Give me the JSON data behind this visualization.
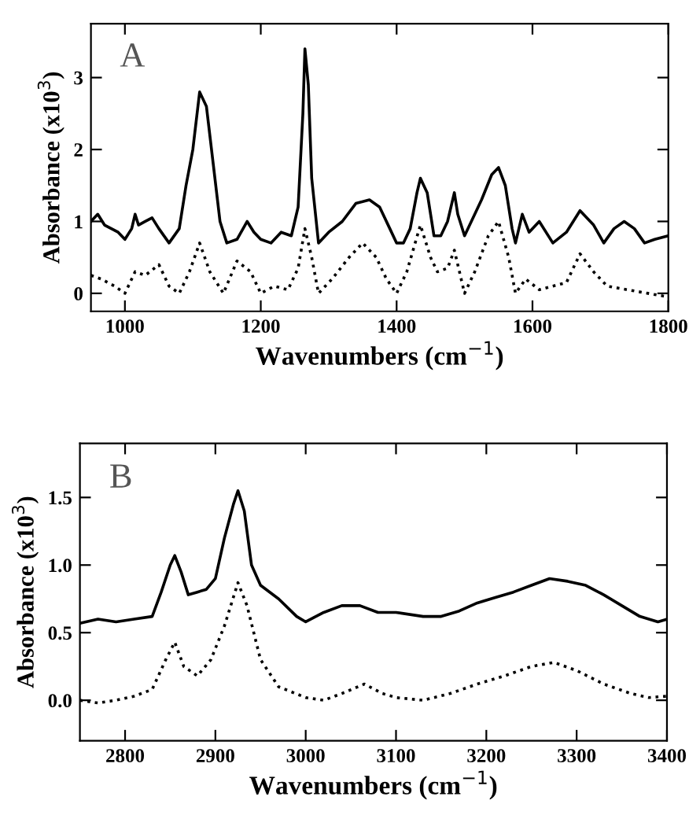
{
  "chart_data": [
    {
      "type": "line",
      "xlabel": "Wavenumbers (cm$^{−1}$)",
      "ylabel": "Absorbance (x10$^{3}$)",
      "annotations": [
        "A"
      ],
      "xlim": [
        950,
        1800
      ],
      "xticks": [
        1000,
        1200,
        1400,
        1600,
        1800
      ],
      "ylim": [
        -0.25,
        3.75
      ],
      "yticks": [
        0,
        1,
        2,
        3
      ],
      "grid": false,
      "legend": false,
      "series": [
        {
          "color": "#000000",
          "line_style": "solid",
          "x": [
            950,
            960,
            970,
            990,
            1000,
            1010,
            1015,
            1020,
            1030,
            1040,
            1050,
            1065,
            1080,
            1090,
            1100,
            1110,
            1120,
            1130,
            1140,
            1150,
            1165,
            1180,
            1190,
            1200,
            1215,
            1230,
            1245,
            1255,
            1262,
            1265,
            1270,
            1275,
            1285,
            1300,
            1320,
            1340,
            1360,
            1375,
            1390,
            1400,
            1410,
            1420,
            1430,
            1435,
            1445,
            1455,
            1465,
            1475,
            1485,
            1490,
            1500,
            1510,
            1525,
            1540,
            1550,
            1560,
            1570,
            1575,
            1585,
            1595,
            1610,
            1630,
            1650,
            1670,
            1690,
            1705,
            1720,
            1735,
            1750,
            1765,
            1780,
            1800
          ],
          "values": [
            1.0,
            1.1,
            0.95,
            0.85,
            0.75,
            0.9,
            1.1,
            0.95,
            1.0,
            1.05,
            0.9,
            0.7,
            0.9,
            1.5,
            2.0,
            2.8,
            2.6,
            1.8,
            1.0,
            0.7,
            0.75,
            1.0,
            0.85,
            0.75,
            0.7,
            0.85,
            0.8,
            1.2,
            2.5,
            3.4,
            2.9,
            1.6,
            0.7,
            0.85,
            1.0,
            1.25,
            1.3,
            1.2,
            0.9,
            0.7,
            0.7,
            0.9,
            1.4,
            1.6,
            1.4,
            0.8,
            0.8,
            1.0,
            1.4,
            1.1,
            0.8,
            1.0,
            1.3,
            1.65,
            1.75,
            1.5,
            0.9,
            0.7,
            1.1,
            0.85,
            1.0,
            0.7,
            0.85,
            1.15,
            0.95,
            0.7,
            0.9,
            1.0,
            0.9,
            0.7,
            0.75,
            0.8
          ]
        },
        {
          "color": "#000000",
          "line_style": "dotted",
          "x": [
            950,
            965,
            985,
            1000,
            1015,
            1030,
            1050,
            1065,
            1080,
            1095,
            1110,
            1125,
            1145,
            1165,
            1185,
            1200,
            1220,
            1240,
            1255,
            1265,
            1275,
            1285,
            1305,
            1330,
            1350,
            1370,
            1385,
            1400,
            1415,
            1435,
            1450,
            1460,
            1475,
            1485,
            1500,
            1515,
            1535,
            1550,
            1565,
            1575,
            1590,
            1610,
            1630,
            1650,
            1670,
            1690,
            1710,
            1740,
            1770,
            1800
          ],
          "values": [
            0.25,
            0.2,
            0.1,
            0.0,
            0.3,
            0.25,
            0.4,
            0.1,
            0.0,
            0.3,
            0.7,
            0.3,
            0.0,
            0.45,
            0.3,
            0.0,
            0.1,
            0.05,
            0.35,
            0.9,
            0.5,
            0.0,
            0.2,
            0.5,
            0.7,
            0.5,
            0.2,
            0.0,
            0.3,
            0.95,
            0.5,
            0.3,
            0.35,
            0.6,
            0.0,
            0.3,
            0.8,
            1.0,
            0.5,
            0.0,
            0.2,
            0.05,
            0.1,
            0.15,
            0.55,
            0.3,
            0.1,
            0.05,
            0.0,
            -0.05
          ]
        }
      ]
    },
    {
      "type": "line",
      "xlabel": "Wavenumbers (cm$^{−1}$)",
      "ylabel": "Absorbance (x10$^{3}$)",
      "annotations": [
        "B"
      ],
      "xlim": [
        2750,
        3400
      ],
      "xticks": [
        2800,
        2900,
        3000,
        3100,
        3200,
        3300,
        3400
      ],
      "ylim": [
        -0.3,
        1.9
      ],
      "yticks": [
        {
          "value": 0,
          "label": "0.0"
        },
        0.5,
        {
          "value": 1,
          "label": "1.0"
        },
        1.5
      ],
      "grid": false,
      "legend": false,
      "series": [
        {
          "color": "#000000",
          "line_style": "solid",
          "x": [
            2750,
            2770,
            2790,
            2810,
            2830,
            2840,
            2850,
            2855,
            2862,
            2870,
            2880,
            2890,
            2900,
            2910,
            2920,
            2925,
            2932,
            2940,
            2950,
            2970,
            2990,
            3000,
            3020,
            3040,
            3060,
            3080,
            3100,
            3130,
            3150,
            3170,
            3190,
            3210,
            3230,
            3250,
            3270,
            3290,
            3310,
            3330,
            3350,
            3370,
            3390,
            3400
          ],
          "values": [
            0.57,
            0.6,
            0.58,
            0.6,
            0.62,
            0.8,
            1.0,
            1.07,
            0.95,
            0.78,
            0.8,
            0.82,
            0.9,
            1.2,
            1.45,
            1.55,
            1.4,
            1.0,
            0.85,
            0.75,
            0.62,
            0.58,
            0.65,
            0.7,
            0.7,
            0.65,
            0.65,
            0.62,
            0.62,
            0.66,
            0.72,
            0.76,
            0.8,
            0.85,
            0.9,
            0.88,
            0.85,
            0.78,
            0.7,
            0.62,
            0.58,
            0.6
          ]
        },
        {
          "color": "#000000",
          "line_style": "dotted",
          "x": [
            2750,
            2770,
            2790,
            2810,
            2830,
            2845,
            2855,
            2865,
            2880,
            2895,
            2910,
            2925,
            2935,
            2950,
            2970,
            3000,
            3020,
            3040,
            3065,
            3085,
            3100,
            3130,
            3160,
            3190,
            3220,
            3250,
            3275,
            3300,
            3330,
            3360,
            3380,
            3400
          ],
          "values": [
            0.0,
            -0.02,
            0.0,
            0.03,
            0.08,
            0.3,
            0.43,
            0.25,
            0.18,
            0.3,
            0.55,
            0.87,
            0.7,
            0.3,
            0.1,
            0.02,
            0.0,
            0.05,
            0.12,
            0.05,
            0.02,
            0.0,
            0.05,
            0.12,
            0.18,
            0.25,
            0.28,
            0.22,
            0.12,
            0.05,
            0.02,
            0.03
          ]
        }
      ]
    }
  ]
}
